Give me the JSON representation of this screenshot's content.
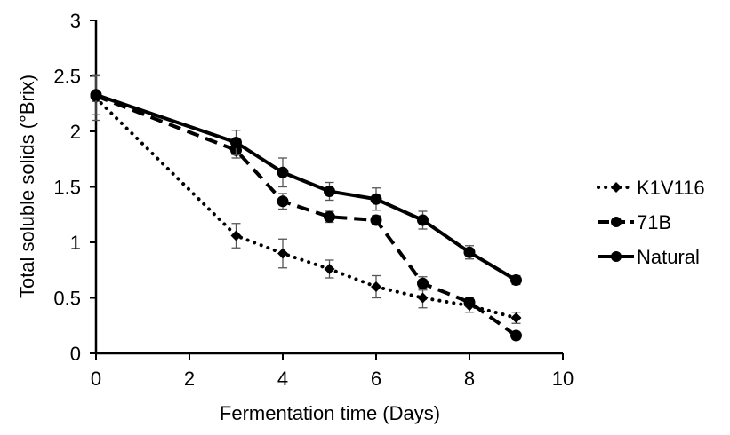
{
  "chart_data": {
    "type": "line",
    "title": "",
    "xlabel": "Fermentation time (Days)",
    "ylabel": "Total soluble solids (°Brix)",
    "xlim": [
      0,
      10
    ],
    "ylim": [
      0,
      3
    ],
    "x_ticks": [
      "0",
      "2",
      "4",
      "6",
      "8",
      "10"
    ],
    "y_ticks": [
      "0",
      "0.5",
      "1",
      "1.5",
      "2",
      "2.5",
      "3"
    ],
    "grid": false,
    "legend_position": "right",
    "x": [
      0,
      3,
      4,
      5,
      6,
      7,
      8,
      9
    ],
    "series": [
      {
        "name": "K1V116",
        "style": "dotted",
        "marker": "diamond",
        "values": [
          2.3,
          1.06,
          0.9,
          0.76,
          0.6,
          0.5,
          0.43,
          0.32
        ],
        "errors": [
          0.2,
          0.11,
          0.13,
          0.08,
          0.1,
          0.09,
          0.06,
          0.05
        ]
      },
      {
        "name": "71B",
        "style": "dashed",
        "marker": "circle",
        "values": [
          2.32,
          1.83,
          1.37,
          1.23,
          1.2,
          0.63,
          0.46,
          0.16
        ],
        "errors": [
          0.05,
          0.07,
          0.07,
          0.05,
          0.04,
          0.06,
          0.04,
          0.02
        ]
      },
      {
        "name": "Natural",
        "style": "solid",
        "marker": "circle",
        "values": [
          2.33,
          1.9,
          1.63,
          1.46,
          1.39,
          1.2,
          0.91,
          0.66
        ],
        "errors": [
          0.18,
          0.11,
          0.13,
          0.08,
          0.1,
          0.08,
          0.06,
          0.04
        ]
      }
    ]
  }
}
